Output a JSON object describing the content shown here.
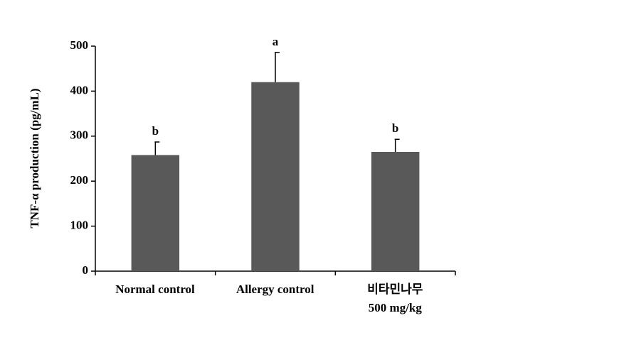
{
  "chart_data": {
    "type": "bar",
    "y_label": "TNF-α production (pg/mL)",
    "categories": [
      "Normal control",
      "Allergy control",
      "비타민나무\n500 mg/kg"
    ],
    "values": [
      258,
      420,
      265
    ],
    "errors": [
      29,
      66,
      28
    ],
    "letters": [
      "b",
      "a",
      "b"
    ],
    "color": "#595959",
    "ylim": [
      0,
      500
    ],
    "yticks": [
      0,
      100,
      200,
      300,
      400,
      500
    ],
    "grid": false
  }
}
